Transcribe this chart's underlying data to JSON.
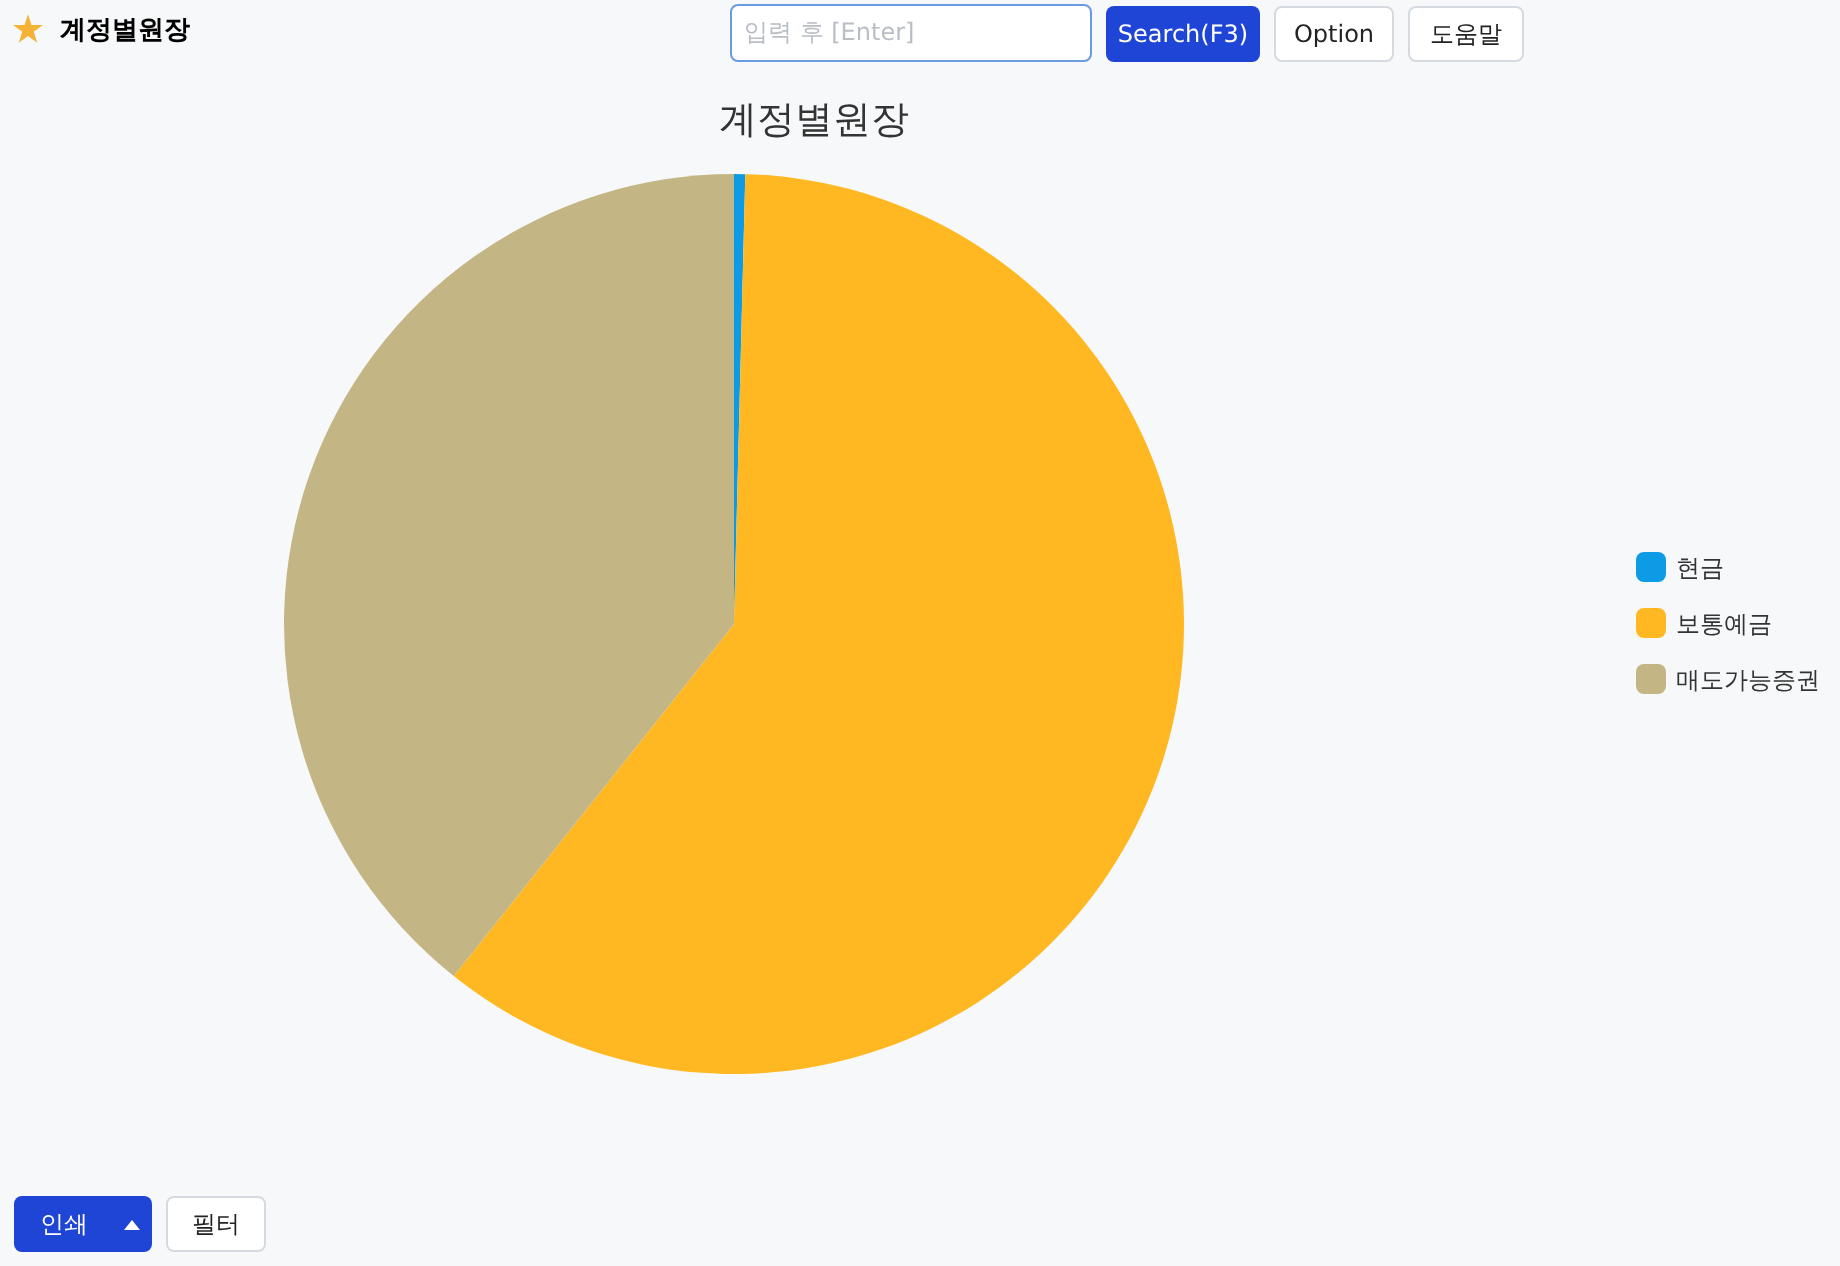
{
  "chart_data": {
    "type": "pie",
    "title": "계정별원장",
    "categories": [
      "현금",
      "보통예금",
      "매도가능증권"
    ],
    "values": [
      0.4,
      60.3,
      39.3
    ],
    "colors": [
      "#0d9be6",
      "#ffb822",
      "#c4b585"
    ],
    "legend": "right",
    "annotations": [
      "계정별원장",
      "입력 후 [Enter]",
      "Search(F3)",
      "Option",
      "도움말",
      "인쇄",
      "필터"
    ]
  }
}
